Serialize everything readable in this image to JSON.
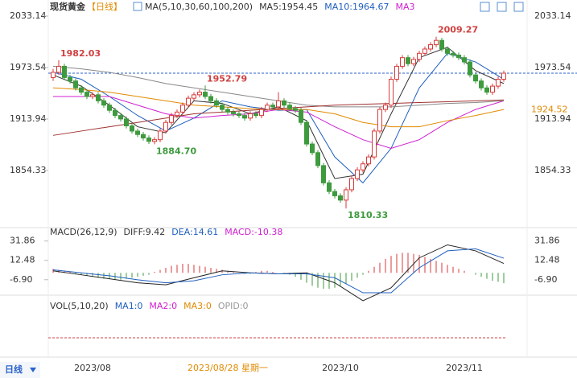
{
  "chart_data": {
    "type": "candlestick",
    "title": "现货黄金",
    "period": "【日线】",
    "legend": [
      {
        "text": "MA(5,10,30,60,100,200)",
        "color": "#333333"
      },
      {
        "text": "MA5:1954.45",
        "color": "#333333"
      },
      {
        "text": "MA10:1964.67",
        "color": "#1f5fbf"
      },
      {
        "text": "MA3",
        "color": "#d020d0"
      }
    ],
    "ylim": [
      1802.15,
      2042.45
    ],
    "yticks": [
      2033.14,
      1973.54,
      1913.94,
      1854.33
    ],
    "grid": false,
    "up_color": "#d83a3a",
    "down_color": "#3d9a3d",
    "candles": [
      [
        1962,
        1972,
        1958,
        1968
      ],
      [
        1968,
        1982.03,
        1965,
        1975
      ],
      [
        1975,
        1978,
        1959,
        1962
      ],
      [
        1962,
        1965,
        1955,
        1958
      ],
      [
        1958,
        1961,
        1947,
        1950
      ],
      [
        1950,
        1953,
        1942,
        1945
      ],
      [
        1945,
        1948,
        1937,
        1940
      ],
      [
        1940,
        1945,
        1937,
        1942
      ],
      [
        1942,
        1945,
        1932,
        1935
      ],
      [
        1935,
        1938,
        1927,
        1930
      ],
      [
        1930,
        1933,
        1921,
        1924
      ],
      [
        1924,
        1927,
        1915,
        1918
      ],
      [
        1918,
        1921,
        1911,
        1914
      ],
      [
        1914,
        1917,
        1903,
        1906
      ],
      [
        1906,
        1909,
        1897,
        1900
      ],
      [
        1900,
        1903,
        1893,
        1896
      ],
      [
        1896,
        1899,
        1889,
        1892
      ],
      [
        1892,
        1895,
        1885,
        1888
      ],
      [
        1888,
        1893,
        1884.7,
        1890
      ],
      [
        1890,
        1903,
        1887,
        1900
      ],
      [
        1900,
        1913,
        1897,
        1910
      ],
      [
        1910,
        1921,
        1907,
        1918
      ],
      [
        1918,
        1925,
        1915,
        1922
      ],
      [
        1922,
        1933,
        1919,
        1930
      ],
      [
        1930,
        1941,
        1927,
        1938
      ],
      [
        1938,
        1945,
        1935,
        1942
      ],
      [
        1942,
        1948,
        1939,
        1945
      ],
      [
        1945,
        1952.79,
        1937,
        1940
      ],
      [
        1940,
        1943,
        1932,
        1935
      ],
      [
        1935,
        1938,
        1927,
        1930
      ],
      [
        1930,
        1933,
        1922,
        1925
      ],
      [
        1925,
        1928,
        1919,
        1922
      ],
      [
        1922,
        1925,
        1917,
        1920
      ],
      [
        1920,
        1923,
        1915,
        1918
      ],
      [
        1918,
        1921,
        1912,
        1915
      ],
      [
        1915,
        1923,
        1912,
        1920
      ],
      [
        1920,
        1923,
        1915,
        1918
      ],
      [
        1918,
        1928,
        1915,
        1925
      ],
      [
        1925,
        1933,
        1922,
        1930
      ],
      [
        1930,
        1933,
        1925,
        1928
      ],
      [
        1928,
        1945,
        1925,
        1935
      ],
      [
        1935,
        1938,
        1927,
        1930
      ],
      [
        1930,
        1933,
        1923,
        1926
      ],
      [
        1926,
        1929,
        1921,
        1924
      ],
      [
        1924,
        1927,
        1907,
        1910
      ],
      [
        1910,
        1913,
        1882,
        1885
      ],
      [
        1885,
        1888,
        1872,
        1875
      ],
      [
        1875,
        1878,
        1857,
        1860
      ],
      [
        1860,
        1863,
        1837,
        1840
      ],
      [
        1840,
        1843,
        1827,
        1830
      ],
      [
        1830,
        1833,
        1822,
        1825
      ],
      [
        1825,
        1828,
        1817,
        1820
      ],
      [
        1820,
        1835,
        1810.33,
        1832
      ],
      [
        1832,
        1848,
        1829,
        1845
      ],
      [
        1845,
        1858,
        1842,
        1855
      ],
      [
        1855,
        1865,
        1852,
        1862
      ],
      [
        1862,
        1873,
        1859,
        1870
      ],
      [
        1870,
        1903,
        1867,
        1900
      ],
      [
        1900,
        1928,
        1897,
        1925
      ],
      [
        1925,
        1933,
        1922,
        1930
      ],
      [
        1930,
        1963,
        1927,
        1960
      ],
      [
        1960,
        1978,
        1957,
        1975
      ],
      [
        1975,
        1988,
        1972,
        1985
      ],
      [
        1985,
        1988,
        1975,
        1978
      ],
      [
        1978,
        1986,
        1975,
        1983
      ],
      [
        1983,
        1993,
        1980,
        1990
      ],
      [
        1990,
        1998,
        1987,
        1995
      ],
      [
        1995,
        2003,
        1992,
        2000
      ],
      [
        2000,
        2009.27,
        1997,
        2005
      ],
      [
        2005,
        2008,
        1992,
        1995
      ],
      [
        1995,
        1998,
        1987,
        1990
      ],
      [
        1990,
        1993,
        1985,
        1988
      ],
      [
        1988,
        1991,
        1982,
        1985
      ],
      [
        1985,
        1988,
        1977,
        1980
      ],
      [
        1980,
        1983,
        1962,
        1965
      ],
      [
        1965,
        1968,
        1955,
        1958
      ],
      [
        1958,
        1961,
        1947,
        1950
      ],
      [
        1950,
        1953,
        1942,
        1945
      ],
      [
        1945,
        1955,
        1942,
        1952
      ],
      [
        1952,
        1963,
        1949,
        1960
      ],
      [
        1960,
        1970,
        1957,
        1967
      ]
    ],
    "ma_x": [
      0,
      5,
      10,
      15,
      20,
      25,
      30,
      35,
      40,
      45,
      50,
      55,
      60,
      65,
      70,
      75,
      80
    ],
    "ma": [
      {
        "name": "MA5",
        "color": "#333333",
        "values": [
          1965,
          1952,
          1930,
          1905,
          1898,
          1935,
          1932,
          1920,
          1928,
          1912,
          1845,
          1850,
          1920,
          1985,
          1997,
          1970,
          1955
        ]
      },
      {
        "name": "MA10",
        "color": "#1f5fbf",
        "values": [
          1968,
          1960,
          1940,
          1918,
          1900,
          1915,
          1935,
          1928,
          1924,
          1925,
          1870,
          1840,
          1880,
          1950,
          1990,
          1980,
          1960
        ]
      },
      {
        "name": "MA30",
        "color": "#d020d0",
        "values": [
          1940,
          1940,
          1940,
          1930,
          1920,
          1915,
          1918,
          1920,
          1925,
          1922,
          1905,
          1890,
          1880,
          1890,
          1910,
          1925,
          1935
        ]
      },
      {
        "name": "MA60",
        "color": "#e08a00",
        "values": [
          1950,
          1948,
          1945,
          1940,
          1935,
          1930,
          1928,
          1926,
          1925,
          1925,
          1920,
          1910,
          1905,
          1905,
          1912,
          1918,
          1925
        ]
      },
      {
        "name": "MA100",
        "color": "#888888",
        "values": [
          1975,
          1972,
          1968,
          1962,
          1955,
          1950,
          1945,
          1940,
          1935,
          1930,
          1928,
          1928,
          1928,
          1930,
          1932,
          1933,
          1935
        ]
      },
      {
        "name": "MA200",
        "color": "#a03030",
        "values": [
          1895,
          1900,
          1905,
          1910,
          1915,
          1920,
          1922,
          1924,
          1926,
          1928,
          1930,
          1931,
          1932,
          1933,
          1934,
          1935,
          1936
        ]
      }
    ],
    "annotations": [
      {
        "index": 1,
        "value": 1982.03
      },
      {
        "index": 27,
        "value": 1952.79
      },
      {
        "index": 18,
        "value": 1884.7,
        "label": "1884.70"
      },
      {
        "index": 52,
        "value": 1810.33
      },
      {
        "index": 68,
        "value": 2009.27
      }
    ],
    "right_labels": [
      {
        "value": 1924.52,
        "color": "#e08a00"
      }
    ],
    "macd": {
      "legend": [
        {
          "text": "MACD(26,12,9)",
          "color": "#333333"
        },
        {
          "text": "DIFF:9.42",
          "color": "#333333"
        },
        {
          "text": "DEA:14.61",
          "color": "#1f5fbf"
        },
        {
          "text": "MACD:-10.38",
          "color": "#d020d0"
        }
      ],
      "ylim": [
        -22.41,
        38.06
      ],
      "yticks": [
        31.86,
        12.48,
        {
          "value": -6.9,
          "label": "-6.90"
        }
      ],
      "histogram": [
        4,
        3,
        2,
        1,
        -1,
        -2,
        -3,
        -4,
        -5,
        -6,
        -6,
        -7,
        -7,
        -6,
        -5,
        -4,
        -3,
        -2,
        1,
        3,
        5,
        7,
        8,
        9,
        9,
        8,
        7,
        6,
        5,
        4,
        3,
        2,
        1,
        0,
        -1,
        -1,
        1,
        2,
        2,
        1,
        0,
        -1,
        -2,
        -4,
        -7,
        -10,
        -13,
        -15,
        -16,
        -16,
        -15,
        -13,
        -11,
        -8,
        -5,
        -2,
        2,
        6,
        10,
        14,
        17,
        19,
        20,
        20,
        19,
        18,
        16,
        14,
        12,
        10,
        8,
        6,
        4,
        2,
        0,
        -2,
        -4,
        -6,
        -8,
        -9,
        -10.38
      ],
      "lines": [
        {
          "name": "DIFF",
          "color": "#222222",
          "values": [
            2,
            -2,
            -6,
            -10,
            -12,
            -5,
            2,
            0,
            -1,
            0,
            -10,
            -28,
            -15,
            15,
            28,
            22,
            9.42
          ]
        },
        {
          "name": "DEA",
          "color": "#1f5fbf",
          "values": [
            3,
            0,
            -3,
            -7,
            -10,
            -8,
            -2,
            0,
            -1,
            -1,
            -5,
            -20,
            -20,
            5,
            22,
            24,
            14.61
          ]
        }
      ]
    },
    "volume": {
      "legend": [
        {
          "text": "VOL(5,10,20)",
          "color": "#333333"
        },
        {
          "text": "MA1:0",
          "color": "#1f5fbf"
        },
        {
          "text": "MA2:0",
          "color": "#d020d0"
        },
        {
          "text": "MA3:0",
          "color": "#e08a00"
        },
        {
          "text": "OPID:0",
          "color": "#999999"
        }
      ]
    },
    "period_button": "日线",
    "x_labels": [
      {
        "index": 7,
        "label": "2023/08"
      },
      {
        "index": 51,
        "label": "2023/10"
      },
      {
        "index": 73,
        "label": "2023/11"
      }
    ],
    "crosshair": {
      "index": 31,
      "label": "2023/08/28 星期一"
    }
  }
}
